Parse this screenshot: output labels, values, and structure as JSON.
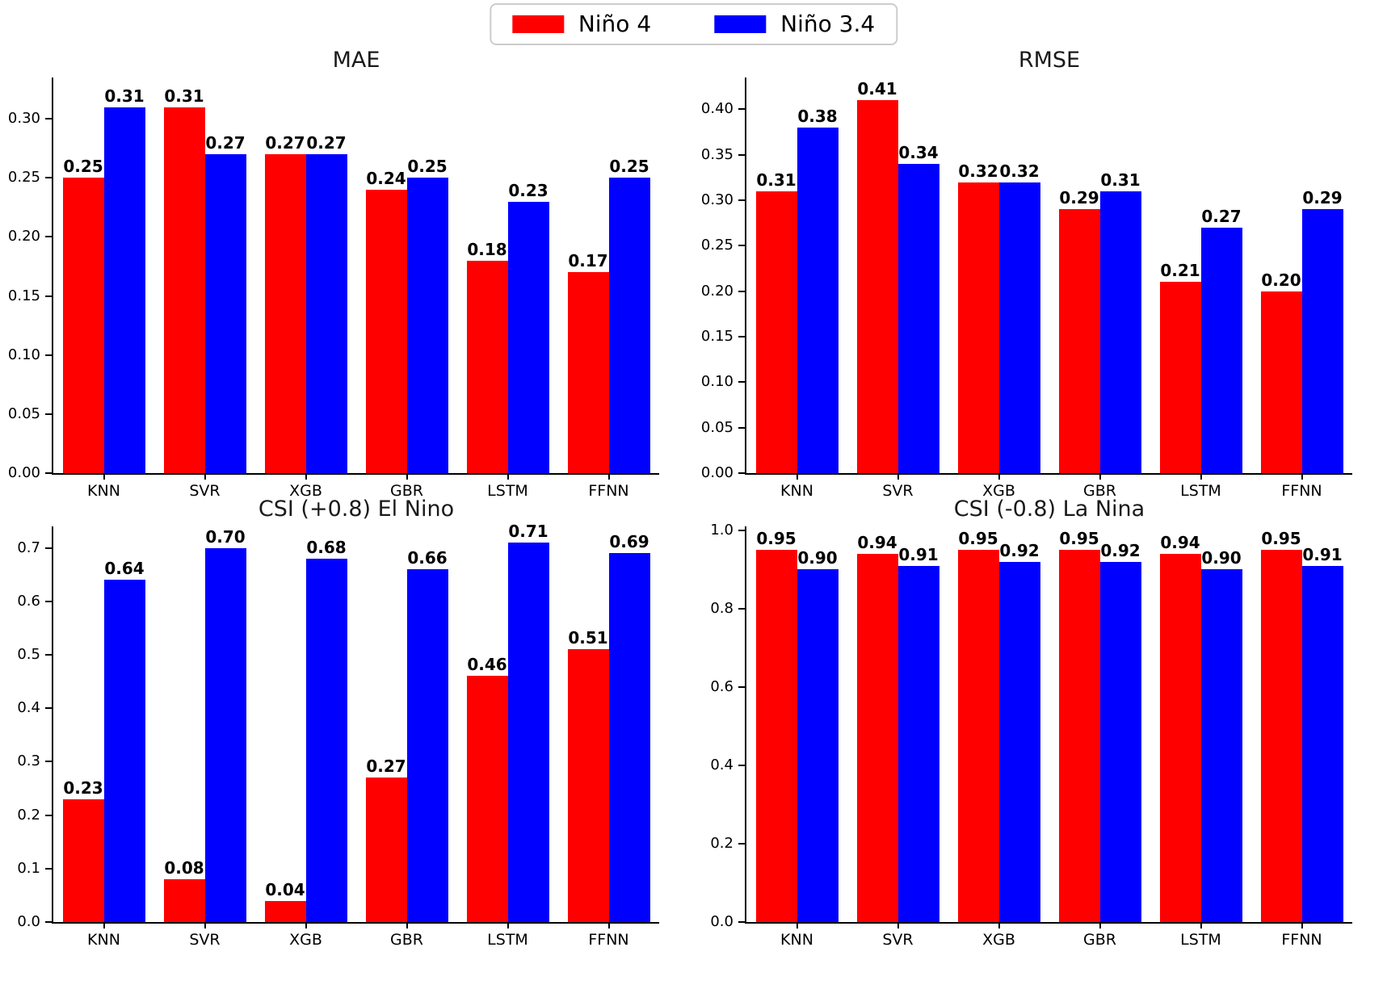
{
  "legend": {
    "items": [
      {
        "label": "Niño 4",
        "color": "#ff0000"
      },
      {
        "label": "Niño 3.4",
        "color": "#0000ff"
      }
    ]
  },
  "chart_data": [
    {
      "type": "bar",
      "title": "MAE",
      "categories": [
        "KNN",
        "SVR",
        "XGB",
        "GBR",
        "LSTM",
        "FFNN"
      ],
      "series": [
        {
          "name": "Niño 4",
          "color": "#ff0000",
          "values": [
            0.25,
            0.31,
            0.27,
            0.24,
            0.18,
            0.17
          ]
        },
        {
          "name": "Niño 3.4",
          "color": "#0000ff",
          "values": [
            0.31,
            0.27,
            0.27,
            0.25,
            0.23,
            0.25
          ]
        }
      ],
      "ylim": [
        0,
        0.335
      ],
      "yticks": [
        {
          "v": 0.0,
          "label": "0.00"
        },
        {
          "v": 0.05,
          "label": "0.05"
        },
        {
          "v": 0.1,
          "label": "0.10"
        },
        {
          "v": 0.15,
          "label": "0.15"
        },
        {
          "v": 0.2,
          "label": "0.20"
        },
        {
          "v": 0.25,
          "label": "0.25"
        },
        {
          "v": 0.3,
          "label": "0.30"
        }
      ],
      "value_label_decimals": 2,
      "grid": false
    },
    {
      "type": "bar",
      "title": "RMSE",
      "categories": [
        "KNN",
        "SVR",
        "XGB",
        "GBR",
        "LSTM",
        "FFNN"
      ],
      "series": [
        {
          "name": "Niño 4",
          "color": "#ff0000",
          "values": [
            0.31,
            0.41,
            0.32,
            0.29,
            0.21,
            0.2
          ]
        },
        {
          "name": "Niño 3.4",
          "color": "#0000ff",
          "values": [
            0.38,
            0.34,
            0.32,
            0.31,
            0.27,
            0.29
          ]
        }
      ],
      "ylim": [
        0,
        0.435
      ],
      "yticks": [
        {
          "v": 0.0,
          "label": "0.00"
        },
        {
          "v": 0.05,
          "label": "0.05"
        },
        {
          "v": 0.1,
          "label": "0.10"
        },
        {
          "v": 0.15,
          "label": "0.15"
        },
        {
          "v": 0.2,
          "label": "0.20"
        },
        {
          "v": 0.25,
          "label": "0.25"
        },
        {
          "v": 0.3,
          "label": "0.30"
        },
        {
          "v": 0.35,
          "label": "0.35"
        },
        {
          "v": 0.4,
          "label": "0.40"
        }
      ],
      "value_label_decimals": 2,
      "grid": false
    },
    {
      "type": "bar",
      "title": "CSI (+0.8) El Nino",
      "categories": [
        "KNN",
        "SVR",
        "XGB",
        "GBR",
        "LSTM",
        "FFNN"
      ],
      "series": [
        {
          "name": "Niño 4",
          "color": "#ff0000",
          "values": [
            0.23,
            0.08,
            0.04,
            0.27,
            0.46,
            0.51
          ]
        },
        {
          "name": "Niño 3.4",
          "color": "#0000ff",
          "values": [
            0.64,
            0.7,
            0.68,
            0.66,
            0.71,
            0.69
          ]
        }
      ],
      "ylim": [
        0,
        0.74
      ],
      "yticks": [
        {
          "v": 0.0,
          "label": "0.0"
        },
        {
          "v": 0.1,
          "label": "0.1"
        },
        {
          "v": 0.2,
          "label": "0.2"
        },
        {
          "v": 0.3,
          "label": "0.3"
        },
        {
          "v": 0.4,
          "label": "0.4"
        },
        {
          "v": 0.5,
          "label": "0.5"
        },
        {
          "v": 0.6,
          "label": "0.6"
        },
        {
          "v": 0.7,
          "label": "0.7"
        }
      ],
      "value_label_decimals": 2,
      "grid": false
    },
    {
      "type": "bar",
      "title": "CSI (-0.8) La Nina",
      "categories": [
        "KNN",
        "SVR",
        "XGB",
        "GBR",
        "LSTM",
        "FFNN"
      ],
      "series": [
        {
          "name": "Niño 4",
          "color": "#ff0000",
          "values": [
            0.95,
            0.94,
            0.95,
            0.95,
            0.94,
            0.95
          ]
        },
        {
          "name": "Niño 3.4",
          "color": "#0000ff",
          "values": [
            0.9,
            0.91,
            0.92,
            0.92,
            0.9,
            0.91
          ]
        }
      ],
      "ylim": [
        0,
        1.01
      ],
      "yticks": [
        {
          "v": 0.0,
          "label": "0.0"
        },
        {
          "v": 0.2,
          "label": "0.2"
        },
        {
          "v": 0.4,
          "label": "0.4"
        },
        {
          "v": 0.6,
          "label": "0.6"
        },
        {
          "v": 0.8,
          "label": "0.8"
        },
        {
          "v": 1.0,
          "label": "1.0"
        }
      ],
      "value_label_decimals": 2,
      "grid": false
    }
  ]
}
